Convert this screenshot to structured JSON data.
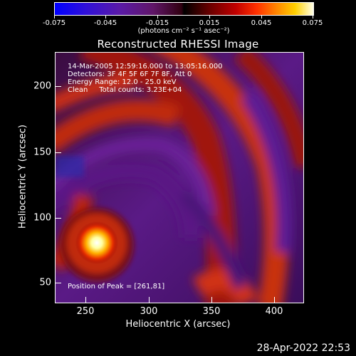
{
  "colorbar": {
    "ticks": [
      "-0.075",
      "-0.045",
      "-0.015",
      "0.015",
      "0.045",
      "0.075"
    ],
    "unit_label": "(photons cm⁻² s⁻¹ asec⁻²)"
  },
  "plot": {
    "title": "Reconstructed RHESSI Image",
    "info": {
      "time": "14-Mar-2005 12:59:16.000 to 13:05:16.000",
      "detectors": "Detectors: 3F 4F 5F 6F 7F 8F, Att 0",
      "energy": "Energy Range: 12.0 - 25.0 keV",
      "method": "Clean     Total counts: 3.23E+04"
    },
    "peak": "Position of Peak = [261,81]",
    "x_axis": {
      "title": "Heliocentric X (arcsec)",
      "ticks": [
        "250",
        "300",
        "350",
        "400"
      ]
    },
    "y_axis": {
      "title": "Heliocentric Y (arcsec)",
      "ticks": [
        "200",
        "150",
        "100",
        "50"
      ]
    }
  },
  "footer": {
    "timestamp": "28-Apr-2022 22:53"
  }
}
